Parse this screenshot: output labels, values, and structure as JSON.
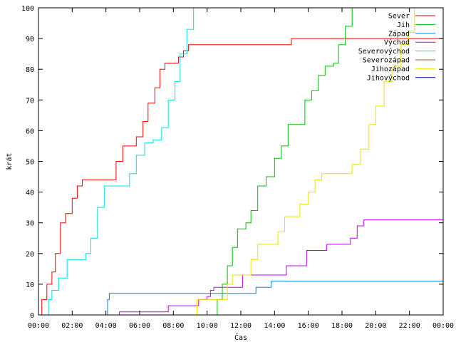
{
  "chart_data": {
    "type": "line",
    "xlabel": "Čas",
    "ylabel": "krát",
    "xlim": [
      0,
      24
    ],
    "ylim": [
      0,
      100
    ],
    "x_ticks": [
      {
        "value": 0,
        "label": "00:00"
      },
      {
        "value": 2,
        "label": "02:00"
      },
      {
        "value": 4,
        "label": "04:00"
      },
      {
        "value": 6,
        "label": "06:00"
      },
      {
        "value": 8,
        "label": "08:00"
      },
      {
        "value": 10,
        "label": "10:00"
      },
      {
        "value": 12,
        "label": "12:00"
      },
      {
        "value": 14,
        "label": "14:00"
      },
      {
        "value": 16,
        "label": "16:00"
      },
      {
        "value": 18,
        "label": "18:00"
      },
      {
        "value": 20,
        "label": "20:00"
      },
      {
        "value": 22,
        "label": "22:00"
      },
      {
        "value": 24,
        "label": "00:00"
      }
    ],
    "y_ticks": [
      {
        "value": 0,
        "label": "0"
      },
      {
        "value": 10,
        "label": "10"
      },
      {
        "value": 20,
        "label": "20"
      },
      {
        "value": 30,
        "label": "30"
      },
      {
        "value": 40,
        "label": "40"
      },
      {
        "value": 50,
        "label": "50"
      },
      {
        "value": 60,
        "label": "60"
      },
      {
        "value": 70,
        "label": "70"
      },
      {
        "value": 80,
        "label": "80"
      },
      {
        "value": 90,
        "label": "90"
      },
      {
        "value": 100,
        "label": "100"
      }
    ],
    "grid": false,
    "legend_position": "top-right",
    "series": [
      {
        "name": "Sever",
        "color": "#ff0000",
        "points": [
          [
            0,
            0
          ],
          [
            0.2,
            5
          ],
          [
            0.5,
            10
          ],
          [
            0.8,
            14
          ],
          [
            1.0,
            20
          ],
          [
            1.3,
            30
          ],
          [
            1.6,
            33
          ],
          [
            2.0,
            38
          ],
          [
            2.3,
            42
          ],
          [
            2.6,
            44
          ],
          [
            4.3,
            44
          ],
          [
            4.6,
            50
          ],
          [
            5.0,
            55
          ],
          [
            5.5,
            55
          ],
          [
            5.8,
            58
          ],
          [
            6.2,
            63
          ],
          [
            6.5,
            69
          ],
          [
            6.9,
            74
          ],
          [
            7.2,
            80
          ],
          [
            7.5,
            82
          ],
          [
            8.1,
            82
          ],
          [
            8.3,
            84
          ],
          [
            8.6,
            86
          ],
          [
            8.9,
            88
          ],
          [
            14.9,
            88
          ],
          [
            15.0,
            90
          ],
          [
            24,
            90
          ]
        ]
      },
      {
        "name": "Jih",
        "color": "#00c000",
        "points": [
          [
            10.4,
            0
          ],
          [
            10.6,
            5
          ],
          [
            10.9,
            10
          ],
          [
            11.2,
            16
          ],
          [
            11.5,
            22
          ],
          [
            11.8,
            28
          ],
          [
            12.3,
            30
          ],
          [
            12.6,
            34
          ],
          [
            13.0,
            42
          ],
          [
            13.5,
            45
          ],
          [
            14.0,
            51
          ],
          [
            14.4,
            55
          ],
          [
            14.8,
            62
          ],
          [
            15.4,
            62
          ],
          [
            15.8,
            70
          ],
          [
            16.2,
            73
          ],
          [
            16.6,
            78
          ],
          [
            17.0,
            81
          ],
          [
            17.5,
            82
          ],
          [
            17.8,
            88
          ],
          [
            18.2,
            94
          ],
          [
            18.6,
            100
          ]
        ]
      },
      {
        "name": "Západ",
        "color": "#0080ff",
        "points": [
          [
            4.0,
            0
          ],
          [
            4.1,
            5
          ],
          [
            4.2,
            7
          ],
          [
            12.8,
            7
          ],
          [
            12.9,
            9
          ],
          [
            13.7,
            9
          ],
          [
            13.8,
            11
          ],
          [
            24,
            11
          ]
        ]
      },
      {
        "name": "Východ",
        "color": "#c000ff",
        "points": [
          [
            4.7,
            0
          ],
          [
            4.8,
            1
          ],
          [
            7.6,
            1
          ],
          [
            7.7,
            3
          ],
          [
            9.2,
            3
          ],
          [
            9.5,
            5
          ],
          [
            10.0,
            6
          ],
          [
            10.2,
            8
          ],
          [
            10.4,
            9
          ],
          [
            11.9,
            9
          ],
          [
            12.1,
            13
          ],
          [
            14.6,
            13
          ],
          [
            14.7,
            16
          ],
          [
            15.8,
            16
          ],
          [
            15.9,
            21
          ],
          [
            17.0,
            21
          ],
          [
            17.1,
            23
          ],
          [
            18.2,
            23
          ],
          [
            18.5,
            25
          ],
          [
            18.9,
            29
          ],
          [
            19.3,
            31
          ],
          [
            24,
            31
          ]
        ]
      },
      {
        "name": "Severovýchod",
        "color": "#00e0e0",
        "points": [
          [
            0.4,
            0
          ],
          [
            0.6,
            5
          ],
          [
            0.8,
            8
          ],
          [
            1.2,
            12
          ],
          [
            1.7,
            18
          ],
          [
            2.5,
            18
          ],
          [
            2.8,
            20
          ],
          [
            3.1,
            25
          ],
          [
            3.5,
            35
          ],
          [
            3.9,
            42
          ],
          [
            5.2,
            42
          ],
          [
            5.4,
            46
          ],
          [
            5.8,
            52
          ],
          [
            6.3,
            56
          ],
          [
            6.8,
            57
          ],
          [
            7.3,
            61
          ],
          [
            7.7,
            70
          ],
          [
            8.1,
            76
          ],
          [
            8.4,
            85
          ],
          [
            8.8,
            93
          ],
          [
            9.2,
            100
          ]
        ]
      },
      {
        "name": "Severozápad",
        "color": "#a0522d",
        "points": []
      },
      {
        "name": "Jihozápad",
        "color": "#f0e000",
        "points": [
          [
            9.3,
            0
          ],
          [
            9.4,
            5
          ],
          [
            11.0,
            5
          ],
          [
            11.2,
            10
          ],
          [
            11.5,
            13
          ],
          [
            12.0,
            13
          ],
          [
            12.6,
            18
          ],
          [
            13.0,
            23
          ],
          [
            13.8,
            23
          ],
          [
            14.2,
            27
          ],
          [
            14.6,
            32
          ],
          [
            15.1,
            32
          ],
          [
            15.5,
            36
          ],
          [
            16.0,
            40
          ],
          [
            16.4,
            44
          ],
          [
            16.8,
            46
          ],
          [
            18.2,
            46
          ],
          [
            18.6,
            49
          ],
          [
            19.1,
            54
          ],
          [
            19.6,
            62
          ],
          [
            20.0,
            68
          ],
          [
            20.5,
            76
          ],
          [
            21.0,
            81
          ],
          [
            21.5,
            88
          ],
          [
            21.9,
            92
          ],
          [
            22.3,
            100
          ]
        ]
      },
      {
        "name": "Jihovýchod",
        "color": "#0000a0",
        "points": []
      }
    ]
  }
}
